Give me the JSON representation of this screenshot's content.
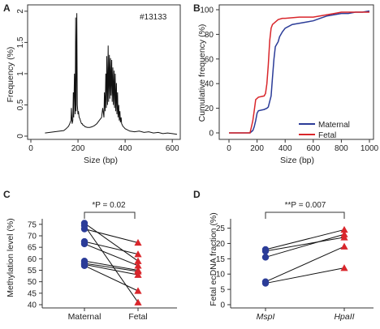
{
  "panels": [
    {
      "letter": "A",
      "annotation": "#13133"
    },
    {
      "letter": "B"
    },
    {
      "letter": "C",
      "pvalue_label": "*P = 0.02"
    },
    {
      "letter": "D",
      "pvalue_label": "**P = 0.007"
    }
  ],
  "colors": {
    "maternal": "#2b3c98",
    "fetal": "#d9262b",
    "axis": "#333333",
    "line": "#111111"
  },
  "chart_data": [
    {
      "type": "line",
      "panel": "A",
      "title": "",
      "xlabel": "Size (bp)",
      "ylabel": "Frequency (%)",
      "xlim": [
        0,
        620
      ],
      "ylim": [
        0,
        2.05
      ],
      "xticks": [
        0,
        200,
        400,
        600
      ],
      "yticks": [
        0,
        0.5,
        1,
        1.5,
        2
      ],
      "series": [
        {
          "x": [
            60,
            100,
            140,
            150,
            160,
            165,
            170,
            172,
            175,
            178,
            180,
            182,
            185,
            188,
            190,
            192,
            195,
            197,
            200,
            202,
            205,
            208,
            210,
            213,
            215,
            218,
            220,
            225,
            230,
            240,
            250,
            260,
            270,
            280,
            290,
            300,
            305,
            310,
            312,
            315,
            318,
            320,
            322,
            325,
            328,
            330,
            333,
            335,
            338,
            340,
            343,
            345,
            348,
            350,
            353,
            355,
            358,
            360,
            363,
            365,
            368,
            370,
            373,
            375,
            378,
            380,
            383,
            385,
            388,
            390,
            395,
            400,
            410,
            420,
            440,
            460,
            480,
            500,
            520,
            540,
            560,
            580,
            600,
            620
          ],
          "y": [
            0.05,
            0.07,
            0.09,
            0.12,
            0.16,
            0.2,
            0.25,
            0.45,
            0.2,
            0.25,
            0.7,
            0.3,
            1.0,
            0.35,
            1.9,
            0.4,
            1.97,
            0.5,
            0.35,
            0.4,
            0.3,
            0.28,
            0.25,
            0.22,
            0.2,
            0.2,
            0.18,
            0.17,
            0.15,
            0.14,
            0.14,
            0.15,
            0.17,
            0.2,
            0.25,
            0.3,
            0.45,
            0.3,
            0.7,
            0.4,
            1.0,
            0.45,
            1.28,
            0.5,
            1.45,
            0.55,
            1.3,
            0.6,
            1.25,
            0.65,
            1.22,
            0.55,
            1.1,
            0.5,
            1.05,
            0.45,
            1.0,
            0.4,
            0.85,
            0.35,
            0.7,
            0.3,
            0.5,
            0.25,
            0.4,
            0.22,
            0.3,
            0.2,
            0.18,
            0.16,
            0.14,
            0.12,
            0.1,
            0.08,
            0.07,
            0.08,
            0.06,
            0.07,
            0.05,
            0.06,
            0.04,
            0.05,
            0.04,
            0.03
          ]
        }
      ]
    },
    {
      "type": "line",
      "panel": "B",
      "title": "",
      "xlabel": "Size (bp)",
      "ylabel": "Cumulative frequency (%)",
      "xlim": [
        0,
        1000
      ],
      "ylim": [
        0,
        100
      ],
      "xticks": [
        0,
        200,
        400,
        600,
        800,
        1000
      ],
      "yticks": [
        0,
        20,
        40,
        60,
        80,
        100
      ],
      "legend": "bottom-right",
      "series": [
        {
          "name": "Maternal",
          "x": [
            0,
            150,
            170,
            180,
            190,
            200,
            210,
            250,
            270,
            280,
            300,
            310,
            320,
            330,
            340,
            350,
            360,
            380,
            400,
            450,
            500,
            550,
            600,
            650,
            700,
            750,
            800,
            850,
            900,
            950,
            1000
          ],
          "y": [
            0,
            0,
            2,
            5,
            10,
            16,
            18,
            19,
            20,
            21,
            30,
            45,
            60,
            70,
            72,
            74,
            78,
            82,
            85,
            88,
            89,
            90,
            91,
            93,
            95,
            96,
            97,
            97,
            98,
            98,
            99
          ]
        },
        {
          "name": "Fetal",
          "x": [
            0,
            150,
            160,
            170,
            180,
            190,
            200,
            210,
            250,
            260,
            270,
            280,
            290,
            300,
            310,
            320,
            330,
            340,
            350,
            380,
            400,
            500,
            600,
            700,
            750,
            800,
            900,
            1000
          ],
          "y": [
            0,
            0,
            5,
            10,
            18,
            27,
            28,
            29,
            30,
            32,
            40,
            55,
            75,
            85,
            88,
            89,
            90,
            91,
            92,
            93,
            93,
            94,
            94,
            96,
            97,
            98,
            98,
            98
          ]
        }
      ]
    },
    {
      "type": "scatter",
      "panel": "C",
      "title": "",
      "xlabel": "",
      "ylabel": "Methylation level (%)",
      "categories": [
        "Maternal",
        "Fetal"
      ],
      "ylim": [
        40,
        76
      ],
      "yticks": [
        40,
        45,
        50,
        55,
        60,
        65,
        70,
        75
      ],
      "pairs": [
        [
          75.5,
          59.0
        ],
        [
          73.0,
          67.0
        ],
        [
          67.5,
          62.0
        ],
        [
          66.5,
          57.0
        ],
        [
          59.0,
          55.0
        ],
        [
          58.0,
          54.5
        ],
        [
          57.5,
          53.0
        ],
        [
          57.0,
          46.0
        ],
        [
          74.5,
          41.0
        ]
      ]
    },
    {
      "type": "scatter",
      "panel": "D",
      "title": "",
      "xlabel": "",
      "ylabel": "Fetal ecDNA fraction (%)",
      "categories": [
        "MspI",
        "HpaII"
      ],
      "ylim": [
        0,
        27
      ],
      "yticks": [
        0,
        5,
        10,
        15,
        20,
        25
      ],
      "pairs": [
        [
          18.0,
          24.5
        ],
        [
          17.5,
          22.0
        ],
        [
          15.5,
          23.0
        ],
        [
          7.5,
          19.0
        ],
        [
          7.0,
          12.0
        ]
      ]
    }
  ],
  "legend_entries": [
    "Maternal",
    "Fetal"
  ]
}
